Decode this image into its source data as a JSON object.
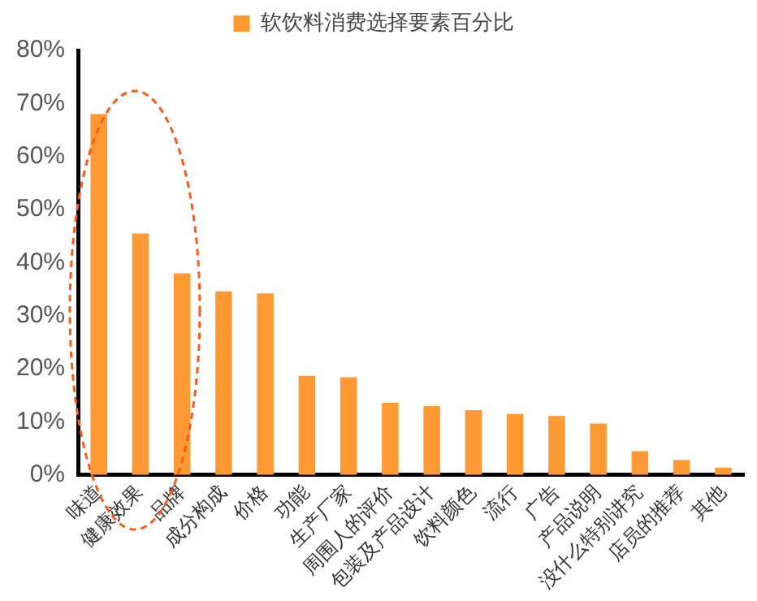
{
  "chart_data": {
    "type": "bar",
    "categories": [
      "味道",
      "健康效果",
      "品牌",
      "成分构成",
      "价格",
      "功能",
      "生产厂家",
      "周围人的评价",
      "包装及产品设计",
      "饮料颜色",
      "流行",
      "广告",
      "产品说明",
      "没什么特别讲究",
      "店员的推荐",
      "其他"
    ],
    "series": [
      {
        "name": "软饮料消费选择要素百分比",
        "color": "#ff9933",
        "values": [
          68,
          45.5,
          38,
          34.6,
          34.2,
          18.7,
          18.4,
          13.6,
          13,
          12.2,
          11.5,
          11.1,
          9.7,
          4.5,
          2.8,
          1.4
        ]
      }
    ],
    "ylim": [
      0,
      80
    ],
    "yticks": [
      {
        "value": 0,
        "label": "0%"
      },
      {
        "value": 10,
        "label": "10%"
      },
      {
        "value": 20,
        "label": "20%"
      },
      {
        "value": 30,
        "label": "30%"
      },
      {
        "value": 40,
        "label": "40%"
      },
      {
        "value": 50,
        "label": "50%"
      },
      {
        "value": 60,
        "label": "60%"
      },
      {
        "value": 70,
        "label": "70%"
      },
      {
        "value": 80,
        "label": "80%"
      }
    ],
    "grid": false,
    "legend": "top"
  }
}
